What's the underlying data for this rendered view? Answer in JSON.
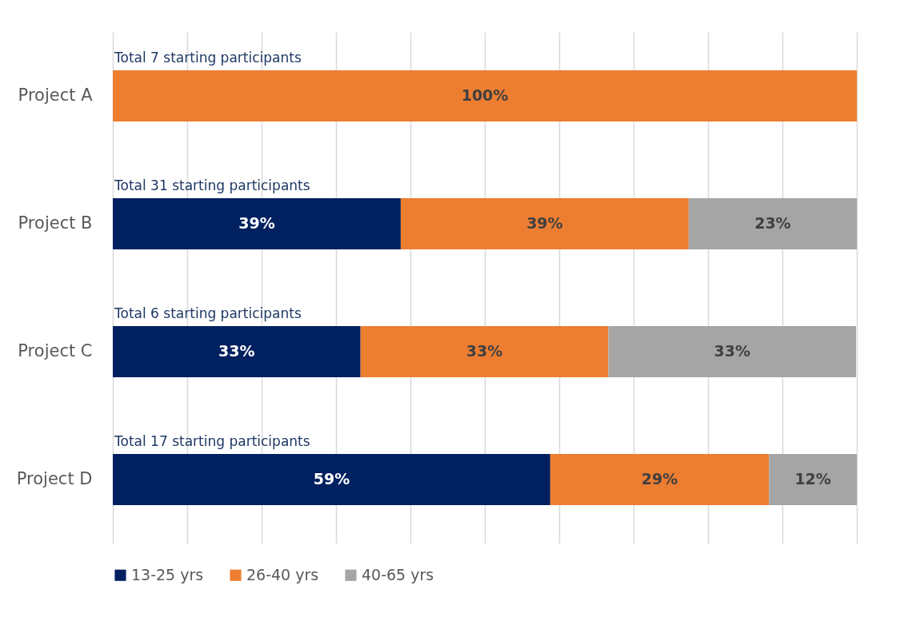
{
  "chart_data": {
    "type": "bar",
    "orientation": "horizontal",
    "stacked": true,
    "categories": [
      "Project A",
      "Project B",
      "Project C",
      "Project D"
    ],
    "series": [
      {
        "name": "13-25 yrs",
        "color": "#002060",
        "values": [
          null,
          38.7,
          33.3,
          58.8
        ],
        "value_labels": [
          null,
          "39%",
          "33%",
          "59%"
        ]
      },
      {
        "name": "26-40 yrs",
        "color": "#ed7d31",
        "values": [
          100,
          38.7,
          33.3,
          29.4
        ],
        "value_labels": [
          "100%",
          "39%",
          "33%",
          "29%"
        ]
      },
      {
        "name": "40-65 yrs",
        "color": "#a5a5a5",
        "values": [
          null,
          22.6,
          33.3,
          11.8
        ],
        "value_labels": [
          null,
          "23%",
          "33%",
          "12%"
        ]
      }
    ],
    "xlim": [
      0,
      100
    ],
    "xticks": [
      {
        "value": 0,
        "label": null
      },
      {
        "value": 10,
        "label": null
      },
      {
        "value": 20,
        "label": null
      },
      {
        "value": 30,
        "label": null
      },
      {
        "value": 40,
        "label": null
      },
      {
        "value": 50,
        "label": null
      },
      {
        "value": 60,
        "label": null
      },
      {
        "value": 70,
        "label": null
      },
      {
        "value": 80,
        "label": null
      },
      {
        "value": 90,
        "label": null
      },
      {
        "value": 100,
        "label": null
      }
    ],
    "tick_labels": "y",
    "grid": "x",
    "legend": "bottom",
    "annotations": [
      "Total 7 starting participants",
      "Total 31 starting participants",
      "Total 6 starting participants",
      "Total 17 starting participants"
    ]
  }
}
